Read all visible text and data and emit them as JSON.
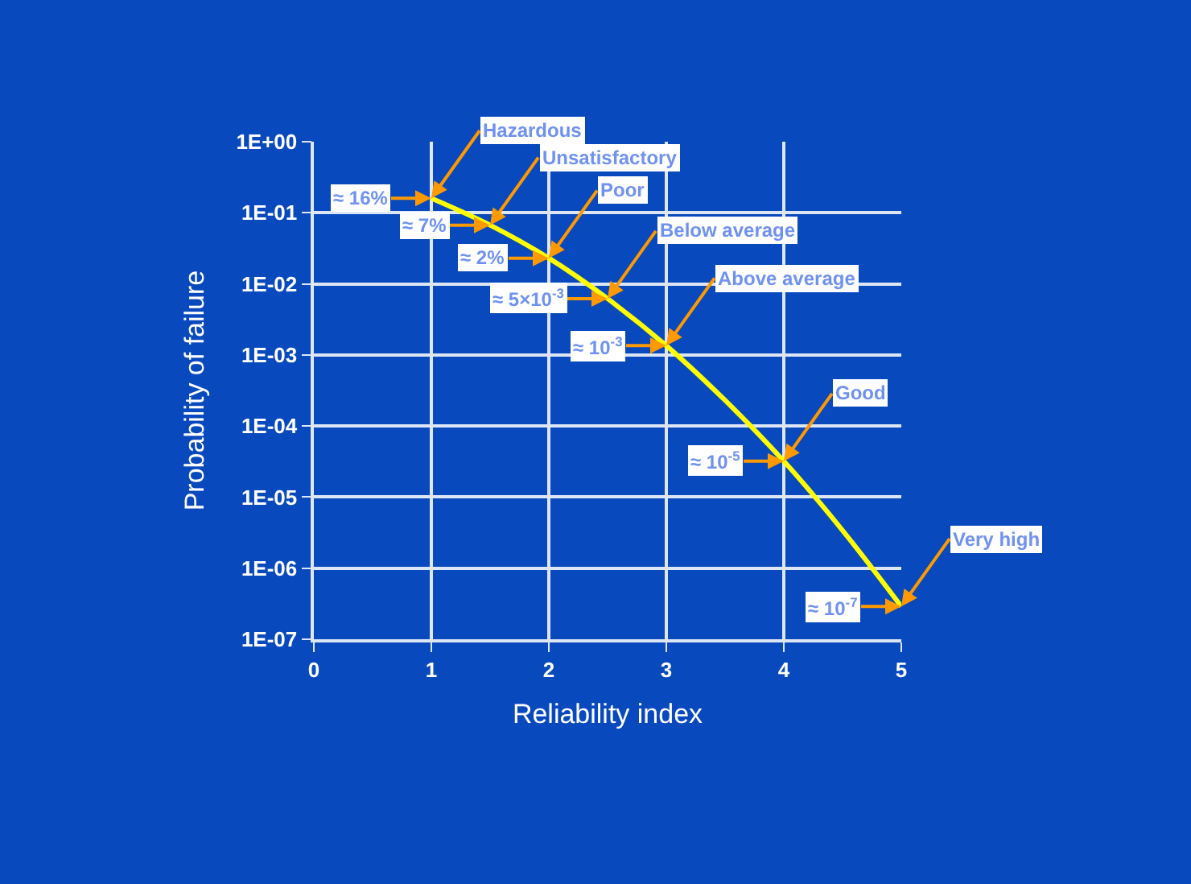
{
  "chart_data": {
    "type": "line",
    "xlabel": "Reliability index",
    "ylabel": "Probability of failure",
    "x": [
      1,
      1.5,
      2,
      2.5,
      3,
      3.5,
      4,
      4.5,
      5
    ],
    "series": [
      {
        "color": "#ffff00",
        "values": [
          0.16,
          0.067,
          0.023,
          0.0062,
          0.00135,
          0.00023,
          3.2e-05,
          3.4e-06,
          2.9e-07
        ]
      }
    ],
    "xlim": [
      0,
      5
    ],
    "xticks": [
      0,
      1,
      2,
      3,
      4,
      5
    ],
    "ylim": [
      1e-07,
      1
    ],
    "log": "y",
    "yticks": [
      {
        "value": 1e-07,
        "label": "1E-07"
      },
      {
        "value": 1e-06,
        "label": "1E-06"
      },
      {
        "value": 1e-05,
        "label": "1E-05"
      },
      {
        "value": 0.0001,
        "label": "1E-04"
      },
      {
        "value": 0.001,
        "label": "1E-03"
      },
      {
        "value": 0.01,
        "label": "1E-02"
      },
      {
        "value": 0.1,
        "label": "1E-01"
      },
      {
        "value": 1,
        "label": "1E+00"
      }
    ],
    "grid": true,
    "marker": "none",
    "line_style": "solid",
    "annotations": [
      {
        "text": "Hazardous",
        "x": 1,
        "y": 0.16
      },
      {
        "text": "≈ 16%",
        "x": 1,
        "y": 0.16
      },
      {
        "text": "Unsatisfactory",
        "x": 1.5,
        "y": 0.067
      },
      {
        "text": "≈ 7%",
        "x": 1.5,
        "y": 0.067
      },
      {
        "text": "Poor",
        "x": 2,
        "y": 0.023
      },
      {
        "text": "≈ 2%",
        "x": 2,
        "y": 0.023
      },
      {
        "text": "Below average",
        "x": 2.5,
        "y": 0.0062
      },
      {
        "text": "≈ 5×10$^{-3}$",
        "x": 2.5,
        "y": 0.0062
      },
      {
        "text": "Above average",
        "x": 3,
        "y": 0.00135
      },
      {
        "text": "≈ 10$^{-3}$",
        "x": 3,
        "y": 0.00135
      },
      {
        "text": "Good",
        "x": 4,
        "y": 3.2e-05
      },
      {
        "text": "≈ 10$^{-5}$",
        "x": 4,
        "y": 3.2e-05
      },
      {
        "text": "Very high",
        "x": 5,
        "y": 2.9e-07
      },
      {
        "text": "≈ 10$^{-7}$",
        "x": 5,
        "y": 2.9e-07
      }
    ]
  }
}
